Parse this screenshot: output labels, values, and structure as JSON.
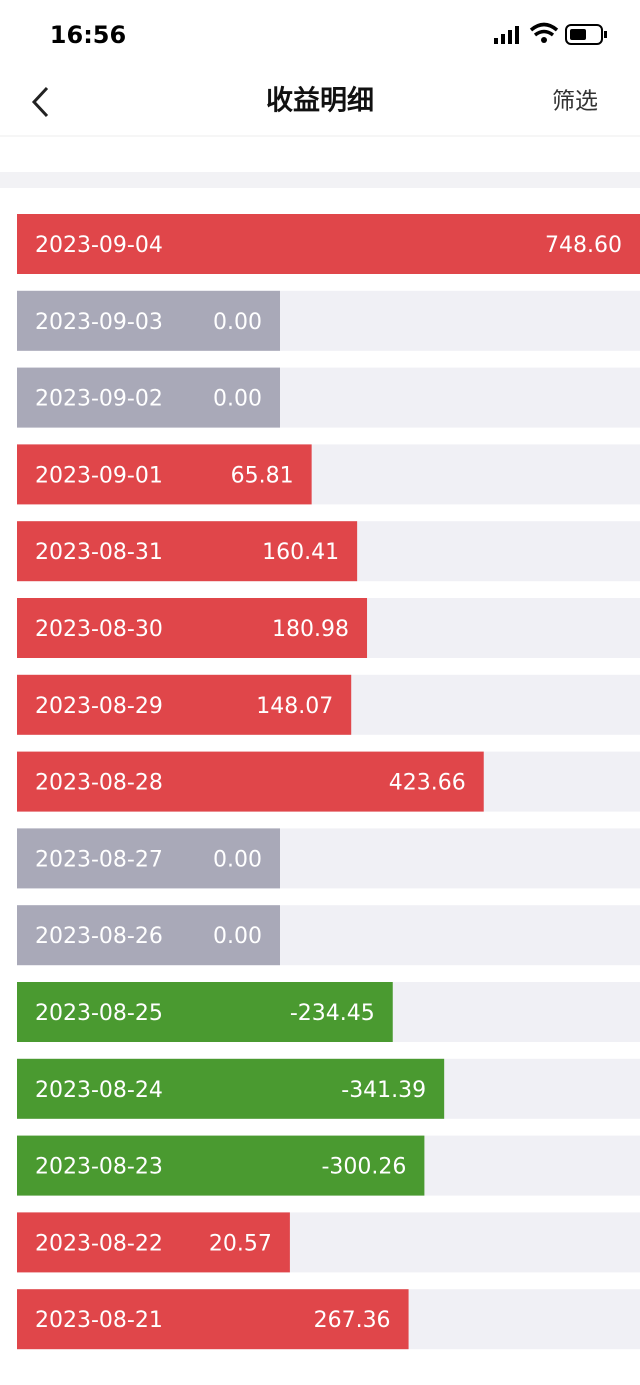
{
  "status_bar": {
    "time": "16:56"
  },
  "header": {
    "title": "收益明细",
    "filter": "筛选"
  },
  "list": {
    "dates": [
      "2023-09-04",
      "2023-09-03",
      "2023-09-02",
      "2023-09-01",
      "2023-08-31",
      "2023-08-30",
      "2023-08-29",
      "2023-08-28",
      "2023-08-27",
      "2023-08-26",
      "2023-08-25",
      "2023-08-24",
      "2023-08-23",
      "2023-08-22",
      "2023-08-21"
    ],
    "values": [
      748.6,
      0,
      0,
      65.81,
      160.41,
      180.98,
      148.07,
      423.66,
      0,
      0,
      -234.45,
      -341.39,
      -300.26,
      20.57,
      267.36
    ],
    "value_labels": [
      "748.60",
      "0.00",
      "0.00",
      "65.81",
      "160.41",
      "180.98",
      "148.07",
      "423.66",
      "0.00",
      "0.00",
      "-234.45",
      "-341.39",
      "-300.26",
      "20.57",
      "267.36"
    ]
  }
}
